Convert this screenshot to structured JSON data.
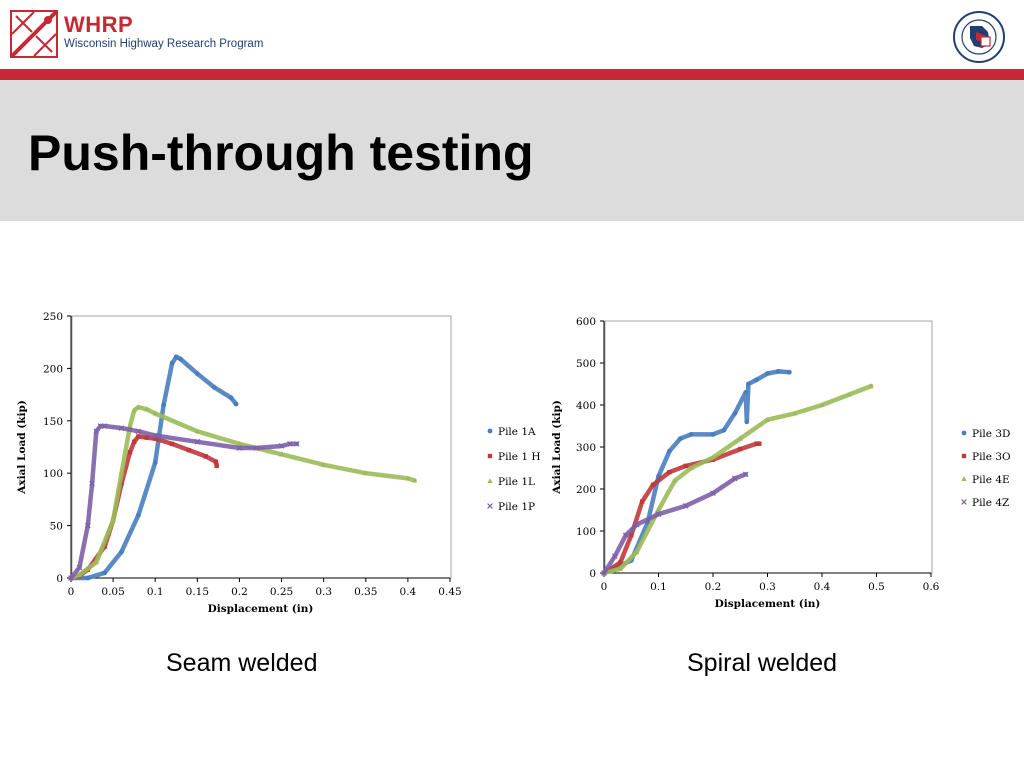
{
  "header": {
    "brand_name": "WHRP",
    "brand_sub": "Wisconsin Highway Research Program"
  },
  "slide": {
    "title": "Push-through testing",
    "left_caption": "Seam welded",
    "right_caption": "Spiral welded"
  },
  "colors": {
    "accent": "#c62936",
    "title_band": "#dcdcdc",
    "blue": "#4a7dbf",
    "red": "#c0393b",
    "green": "#9bbb59",
    "purple": "#7d5fa8"
  },
  "chart_data": [
    {
      "type": "scatter",
      "title": "",
      "xlabel": "Displacement (in)",
      "ylabel": "Axial Load (kip)",
      "xlim": [
        0,
        0.45
      ],
      "ylim": [
        0,
        250
      ],
      "xticks": [
        0,
        0.05,
        0.1,
        0.15,
        0.2,
        0.25,
        0.3,
        0.35,
        0.4,
        0.45
      ],
      "xtick_labels": [
        "0",
        "0.05",
        "0.1",
        "0.15",
        "0.2",
        "0.25",
        "0.3",
        "0.35",
        "0.4",
        "0.45"
      ],
      "yticks": [
        0,
        50,
        100,
        150,
        200,
        250
      ],
      "ytick_labels": [
        "0",
        "50",
        "100",
        "150",
        "200",
        "250"
      ],
      "legend": "right",
      "grid": false,
      "series": [
        {
          "name": "Pile 1A",
          "color": "#4a7dbf",
          "marker": "circle",
          "points": [
            [
              0,
              0
            ],
            [
              0.02,
              0
            ],
            [
              0.04,
              5
            ],
            [
              0.06,
              25
            ],
            [
              0.08,
              60
            ],
            [
              0.1,
              110
            ],
            [
              0.11,
              165
            ],
            [
              0.12,
              205
            ],
            [
              0.125,
              211
            ],
            [
              0.13,
              209
            ],
            [
              0.15,
              195
            ],
            [
              0.17,
              182
            ],
            [
              0.19,
              172
            ],
            [
              0.196,
              166
            ]
          ]
        },
        {
          "name": "Pile 1 H",
          "color": "#c0393b",
          "marker": "square",
          "points": [
            [
              0,
              0
            ],
            [
              0.01,
              2
            ],
            [
              0.02,
              8
            ],
            [
              0.04,
              30
            ],
            [
              0.05,
              55
            ],
            [
              0.06,
              90
            ],
            [
              0.07,
              120
            ],
            [
              0.075,
              130
            ],
            [
              0.08,
              135
            ],
            [
              0.09,
              134
            ],
            [
              0.1,
              133
            ],
            [
              0.12,
              128
            ],
            [
              0.14,
              122
            ],
            [
              0.16,
              116
            ],
            [
              0.172,
              111
            ],
            [
              0.173,
              107
            ]
          ]
        },
        {
          "name": "Pile 1L",
          "color": "#9bbb59",
          "marker": "triangle",
          "points": [
            [
              0,
              0
            ],
            [
              0.01,
              3
            ],
            [
              0.03,
              15
            ],
            [
              0.05,
              55
            ],
            [
              0.06,
              100
            ],
            [
              0.07,
              145
            ],
            [
              0.075,
              160
            ],
            [
              0.08,
              163
            ],
            [
              0.09,
              161
            ],
            [
              0.1,
              157
            ],
            [
              0.15,
              140
            ],
            [
              0.2,
              128
            ],
            [
              0.25,
              118
            ],
            [
              0.3,
              108
            ],
            [
              0.35,
              100
            ],
            [
              0.4,
              95
            ],
            [
              0.408,
              93
            ]
          ]
        },
        {
          "name": "Pile 1P",
          "color": "#7d5fa8",
          "marker": "x",
          "points": [
            [
              0,
              0
            ],
            [
              0.01,
              10
            ],
            [
              0.02,
              50
            ],
            [
              0.025,
              90
            ],
            [
              0.03,
              140
            ],
            [
              0.035,
              145
            ],
            [
              0.04,
              145
            ],
            [
              0.06,
              143
            ],
            [
              0.08,
              140
            ],
            [
              0.1,
              136
            ],
            [
              0.15,
              130
            ],
            [
              0.2,
              124
            ],
            [
              0.22,
              124
            ],
            [
              0.25,
              126
            ],
            [
              0.26,
              128
            ],
            [
              0.268,
              128
            ]
          ]
        }
      ]
    },
    {
      "type": "scatter",
      "title": "",
      "xlabel": "Displacement (in)",
      "ylabel": "Axial Load (kip)",
      "xlim": [
        0,
        0.6
      ],
      "ylim": [
        0,
        600
      ],
      "xticks": [
        0,
        0.1,
        0.2,
        0.3,
        0.4,
        0.5,
        0.6
      ],
      "xtick_labels": [
        "0",
        "0.1",
        "0.2",
        "0.3",
        "0.4",
        "0.5",
        "0.6"
      ],
      "yticks": [
        0,
        100,
        200,
        300,
        400,
        500,
        600
      ],
      "ytick_labels": [
        "0",
        "100",
        "200",
        "300",
        "400",
        "500",
        "600"
      ],
      "legend": "right",
      "grid": false,
      "series": [
        {
          "name": "Pile 3D",
          "color": "#4a7dbf",
          "marker": "circle",
          "points": [
            [
              0,
              0
            ],
            [
              0.05,
              30
            ],
            [
              0.08,
              120
            ],
            [
              0.1,
              230
            ],
            [
              0.12,
              290
            ],
            [
              0.14,
              320
            ],
            [
              0.16,
              330
            ],
            [
              0.2,
              330
            ],
            [
              0.22,
              340
            ],
            [
              0.24,
              380
            ],
            [
              0.26,
              430
            ],
            [
              0.262,
              360
            ],
            [
              0.265,
              450
            ],
            [
              0.28,
              460
            ],
            [
              0.3,
              475
            ],
            [
              0.32,
              480
            ],
            [
              0.34,
              478
            ]
          ]
        },
        {
          "name": "Pile 3O",
          "color": "#c0393b",
          "marker": "square",
          "points": [
            [
              0,
              0
            ],
            [
              0.03,
              25
            ],
            [
              0.05,
              90
            ],
            [
              0.07,
              170
            ],
            [
              0.09,
              210
            ],
            [
              0.12,
              240
            ],
            [
              0.15,
              255
            ],
            [
              0.2,
              270
            ],
            [
              0.25,
              295
            ],
            [
              0.28,
              308
            ],
            [
              0.285,
              308
            ]
          ]
        },
        {
          "name": "Pile 4E",
          "color": "#9bbb59",
          "marker": "triangle",
          "points": [
            [
              0,
              0
            ],
            [
              0.03,
              10
            ],
            [
              0.06,
              50
            ],
            [
              0.1,
              150
            ],
            [
              0.13,
              220
            ],
            [
              0.16,
              250
            ],
            [
              0.2,
              275
            ],
            [
              0.25,
              320
            ],
            [
              0.3,
              365
            ],
            [
              0.35,
              380
            ],
            [
              0.4,
              400
            ],
            [
              0.45,
              425
            ],
            [
              0.49,
              445
            ]
          ]
        },
        {
          "name": "Pile 4Z",
          "color": "#7d5fa8",
          "marker": "x",
          "points": [
            [
              0,
              0
            ],
            [
              0.02,
              40
            ],
            [
              0.04,
              90
            ],
            [
              0.06,
              115
            ],
            [
              0.1,
              140
            ],
            [
              0.15,
              160
            ],
            [
              0.2,
              190
            ],
            [
              0.24,
              225
            ],
            [
              0.26,
              235
            ]
          ]
        }
      ]
    }
  ]
}
